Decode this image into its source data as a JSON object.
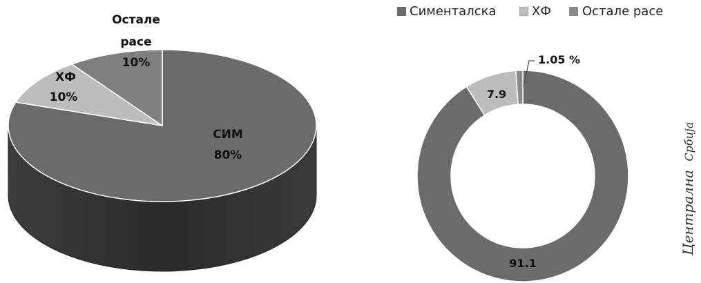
{
  "chart_data": [
    {
      "type": "pie",
      "style": "3d",
      "slices": [
        {
          "label": "СИМ",
          "value": 80,
          "value_text": "80%",
          "color": "#6b6b6b"
        },
        {
          "label": "ХФ",
          "value": 10,
          "value_text": "10%",
          "color": "#bdbdbd"
        },
        {
          "label": "Остале расе",
          "value": 10,
          "value_text": "10%",
          "color": "#7f7f7f"
        }
      ]
    },
    {
      "type": "pie",
      "style": "donut",
      "legend": [
        "Сименталска",
        "ХФ",
        "Остале расе"
      ],
      "legend_position": "top",
      "slices": [
        {
          "label": "Сименталска",
          "value": 91.1,
          "value_text": "91.1",
          "color": "#6b6b6b"
        },
        {
          "label": "ХФ",
          "value": 7.9,
          "value_text": "7.9",
          "color": "#bdbdbd"
        },
        {
          "label": "Остале расе",
          "value": 1.05,
          "value_text": "1.05 %",
          "color": "#8a8a8a"
        }
      ]
    }
  ],
  "side_label": {
    "part1": "Централна",
    "part2": "Србија"
  }
}
